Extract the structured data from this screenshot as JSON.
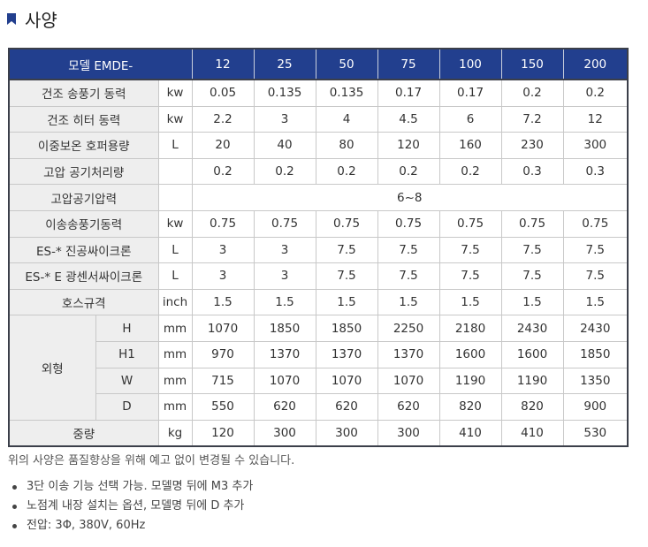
{
  "title": "사양",
  "colors": {
    "header_bg": "#223f8e",
    "label_bg": "#eeeeee",
    "bookmark": "#223f8e"
  },
  "table": {
    "header": {
      "model": "모델 EMDE-",
      "sizes": [
        "12",
        "25",
        "50",
        "75",
        "100",
        "150",
        "200"
      ]
    },
    "rows": [
      {
        "label": "건조 송풍기 동력",
        "unit": "kw",
        "values": [
          "0.05",
          "0.135",
          "0.135",
          "0.17",
          "0.17",
          "0.2",
          "0.2"
        ]
      },
      {
        "label": "건조 히터 동력",
        "unit": "kw",
        "values": [
          "2.2",
          "3",
          "4",
          "4.5",
          "6",
          "7.2",
          "12"
        ]
      },
      {
        "label": "이중보온 호퍼용량",
        "unit": "L",
        "values": [
          "20",
          "40",
          "80",
          "120",
          "160",
          "230",
          "300"
        ]
      },
      {
        "label": "고압 공기처리량",
        "unit": "",
        "values": [
          "0.2",
          "0.2",
          "0.2",
          "0.2",
          "0.2",
          "0.3",
          "0.3"
        ]
      },
      {
        "label": "고압공기압력",
        "unit": "",
        "merged": "6~8"
      },
      {
        "label": "이송송풍기동력",
        "unit": "kw",
        "values": [
          "0.75",
          "0.75",
          "0.75",
          "0.75",
          "0.75",
          "0.75",
          "0.75"
        ]
      },
      {
        "label": "ES-* 진공싸이크론",
        "unit": "L",
        "values": [
          "3",
          "3",
          "7.5",
          "7.5",
          "7.5",
          "7.5",
          "7.5"
        ]
      },
      {
        "label": "ES-* E 광센서싸이크론",
        "unit": "L",
        "values": [
          "3",
          "3",
          "7.5",
          "7.5",
          "7.5",
          "7.5",
          "7.5"
        ]
      },
      {
        "label": "호스규격",
        "unit": "inch",
        "values": [
          "1.5",
          "1.5",
          "1.5",
          "1.5",
          "1.5",
          "1.5",
          "1.5"
        ]
      }
    ],
    "dimensions": {
      "label": "외형",
      "rows": [
        {
          "sub": "H",
          "unit": "mm",
          "values": [
            "1070",
            "1850",
            "1850",
            "2250",
            "2180",
            "2430",
            "2430"
          ]
        },
        {
          "sub": "H1",
          "unit": "mm",
          "values": [
            "970",
            "1370",
            "1370",
            "1370",
            "1600",
            "1600",
            "1850"
          ]
        },
        {
          "sub": "W",
          "unit": "mm",
          "values": [
            "715",
            "1070",
            "1070",
            "1070",
            "1190",
            "1190",
            "1350"
          ]
        },
        {
          "sub": "D",
          "unit": "mm",
          "values": [
            "550",
            "620",
            "620",
            "620",
            "820",
            "820",
            "900"
          ]
        }
      ]
    },
    "weight": {
      "label": "중량",
      "unit": "kg",
      "values": [
        "120",
        "300",
        "300",
        "300",
        "410",
        "410",
        "530"
      ]
    }
  },
  "note": "위의 사양은 품질향상을 위해 예고 없이 변경될 수 있습니다.",
  "bullets": [
    "3단 이송 기능 선택 가능. 모델명 뒤에 M3 추가",
    "노점계 내장 설치는 옵션, 모델명 뒤에 D 추가",
    "전압: 3Φ,  380V,  60Hz"
  ]
}
